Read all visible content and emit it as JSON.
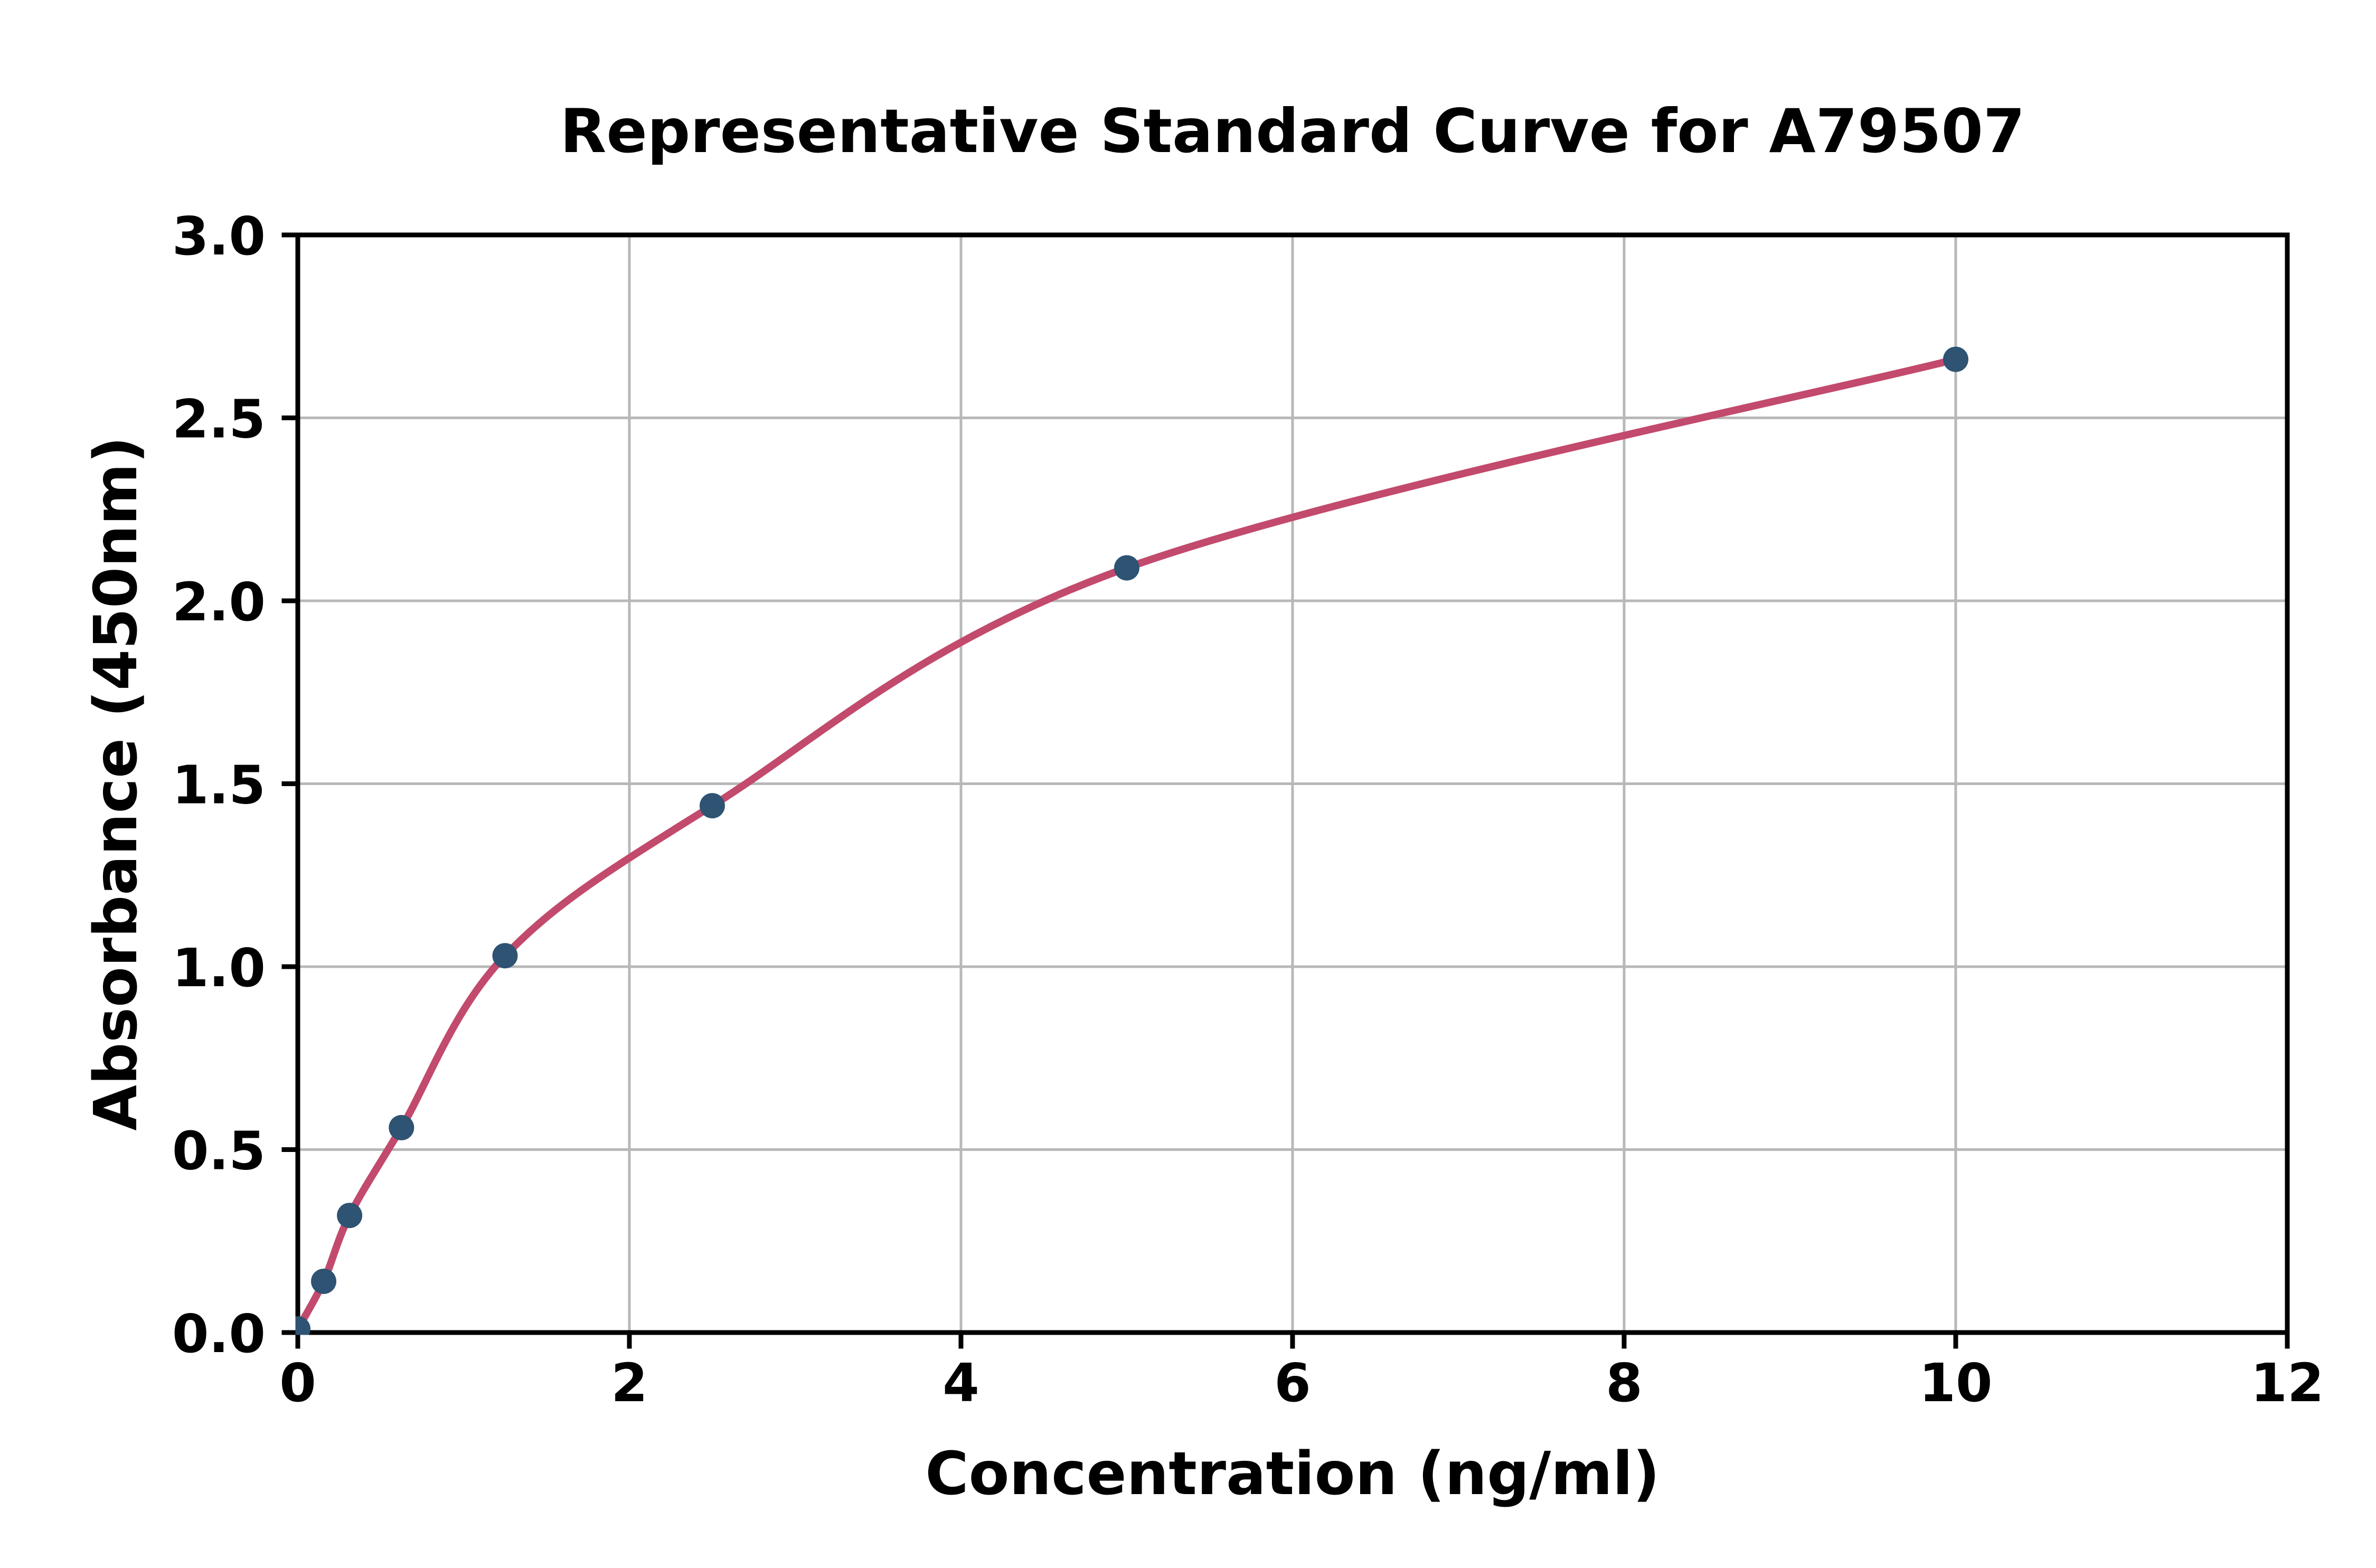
{
  "chart_data": {
    "type": "scatter",
    "has_fit_curve": true,
    "title": "Representative Standard Curve for A79507",
    "xlabel": "Concentration (ng/ml)",
    "ylabel": "Absorbance (450nm)",
    "x": [
      0,
      0.156,
      0.3125,
      0.625,
      1.25,
      2.5,
      5,
      10
    ],
    "y": [
      0.01,
      0.14,
      0.32,
      0.56,
      1.03,
      1.44,
      2.09,
      2.66
    ],
    "xlim": [
      0,
      12
    ],
    "ylim": [
      0,
      3
    ],
    "xticks": [
      0,
      2,
      4,
      6,
      8,
      10,
      12
    ],
    "xtick_labels": [
      "0",
      "2",
      "4",
      "6",
      "8",
      "10",
      "12"
    ],
    "yticks": [
      0.0,
      0.5,
      1.0,
      1.5,
      2.0,
      2.5,
      3.0
    ],
    "ytick_labels": [
      "0.0",
      "0.5",
      "1.0",
      "1.5",
      "2.0",
      "2.5",
      "3.0"
    ],
    "grid": true,
    "legend": "none",
    "colors": {
      "marker": "#2e5373",
      "curve": "#c24a6d",
      "grid": "#b8b8b8",
      "spine": "#000000",
      "background": "#ffffff"
    }
  }
}
